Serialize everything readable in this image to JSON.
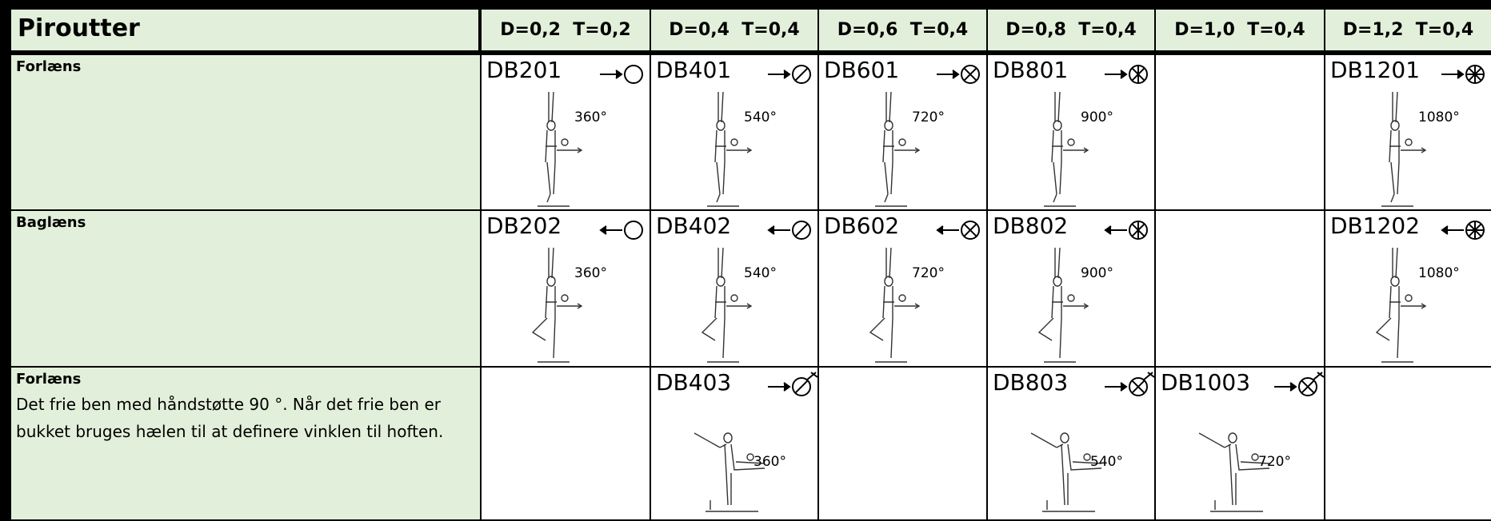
{
  "header": {
    "title": "Piroutter",
    "columns": [
      "D=0,2  T=0,2",
      "D=0,4  T=0,4",
      "D=0,6  T=0,4",
      "D=0,8  T=0,4",
      "D=1,0  T=0,4",
      "D=1,2  T=0,4"
    ]
  },
  "rows": [
    {
      "label": "Forlæns",
      "cells": [
        {
          "code": "DB201",
          "degrees": "360°"
        },
        {
          "code": "DB401",
          "degrees": "540°"
        },
        {
          "code": "DB601",
          "degrees": "720°"
        },
        {
          "code": "DB801",
          "degrees": "900°"
        },
        null,
        {
          "code": "DB1201",
          "degrees": "1080°"
        }
      ]
    },
    {
      "label": "Baglæns",
      "cells": [
        {
          "code": "DB202",
          "degrees": "360°"
        },
        {
          "code": "DB402",
          "degrees": "540°"
        },
        {
          "code": "DB602",
          "degrees": "720°"
        },
        {
          "code": "DB802",
          "degrees": "900°"
        },
        null,
        {
          "code": "DB1202",
          "degrees": "1080°"
        }
      ]
    },
    {
      "label": "Forlæns",
      "description": [
        "Det frie ben med håndstøtte 90 °. Når det frie ben er",
        "bukket bruges hælen til at definere vinklen til hoften."
      ],
      "cells": [
        null,
        {
          "code": "DB403",
          "degrees": "360°"
        },
        null,
        {
          "code": "DB803",
          "degrees": "540°"
        },
        {
          "code": "DB1003",
          "degrees": "720°"
        },
        null
      ]
    }
  ]
}
